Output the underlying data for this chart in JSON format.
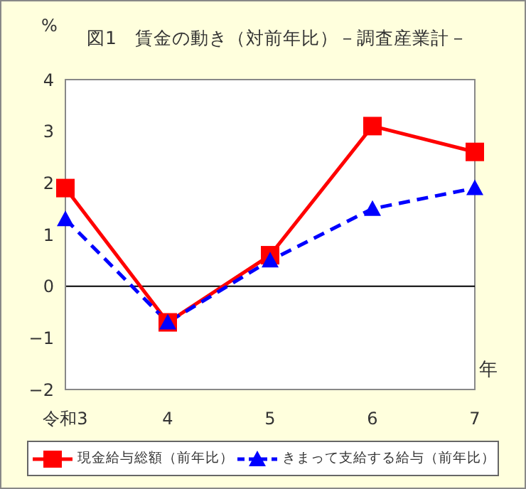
{
  "chart_data": {
    "type": "line",
    "title": "図1　賃金の動き（対前年比）－調査産業計－",
    "ylabel": "%",
    "xlabel": "年",
    "categories": [
      "令和3",
      "4",
      "5",
      "6",
      "7"
    ],
    "series": [
      {
        "name": "現金給与総額（前年比）",
        "color": "#ff0000",
        "values": [
          1.9,
          -0.7,
          0.6,
          3.1,
          2.6
        ],
        "marker": "square",
        "line_style": "solid"
      },
      {
        "name": "きまって支給する給与（前年比）",
        "color": "#0000ff",
        "values": [
          1.3,
          -0.7,
          0.5,
          1.5,
          1.9
        ],
        "marker": "triangle",
        "line_style": "dashed"
      }
    ],
    "ylim": [
      -2,
      4
    ],
    "yticks": [
      -2,
      -1,
      0,
      1,
      2,
      3,
      4
    ],
    "ref_lines": [
      {
        "axis": "y",
        "value": 0,
        "color": "#000000"
      }
    ],
    "legend": "bottom"
  }
}
